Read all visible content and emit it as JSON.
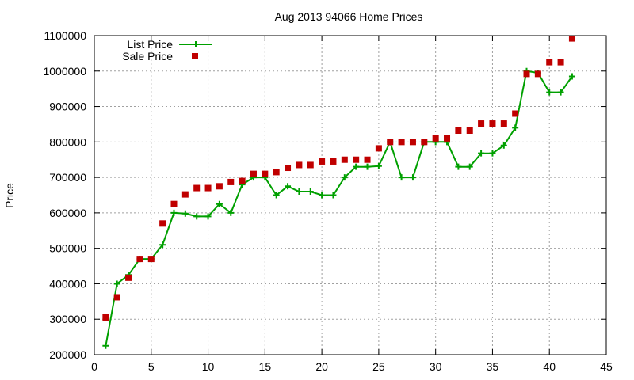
{
  "chart_data": {
    "type": "line",
    "title": "Aug 2013 94066 Home Prices",
    "xlabel": "",
    "ylabel": "Price",
    "xlim": [
      0,
      45
    ],
    "ylim": [
      200000,
      1100000
    ],
    "x_ticks": [
      0,
      5,
      10,
      15,
      20,
      25,
      30,
      35,
      40,
      45
    ],
    "y_ticks": [
      200000,
      300000,
      400000,
      500000,
      600000,
      700000,
      800000,
      900000,
      1000000,
      1100000
    ],
    "grid": true,
    "legend_position": "top-left",
    "series": [
      {
        "name": "List Price",
        "type": "line",
        "marker": "plus",
        "color": "#00a000",
        "x": [
          1,
          2,
          3,
          4,
          5,
          6,
          7,
          8,
          9,
          10,
          11,
          12,
          13,
          14,
          15,
          16,
          17,
          18,
          19,
          20,
          21,
          22,
          23,
          24,
          25,
          26,
          27,
          28,
          29,
          30,
          31,
          32,
          33,
          34,
          35,
          36,
          37,
          38,
          39,
          40,
          41,
          42
        ],
        "values": [
          225000,
          400000,
          425000,
          470000,
          470000,
          510000,
          600000,
          598000,
          590000,
          590000,
          625000,
          600000,
          680000,
          700000,
          700000,
          650000,
          675000,
          660000,
          660000,
          650000,
          650000,
          700000,
          730000,
          730000,
          732000,
          800000,
          700000,
          700000,
          800000,
          800000,
          800000,
          730000,
          730000,
          768000,
          768000,
          790000,
          840000,
          1000000,
          995000,
          940000,
          940000,
          985000
        ]
      },
      {
        "name": "Sale Price",
        "type": "scatter",
        "marker": "square",
        "color": "#c00000",
        "x": [
          1,
          2,
          3,
          4,
          5,
          6,
          7,
          8,
          9,
          10,
          11,
          12,
          13,
          14,
          15,
          16,
          17,
          18,
          19,
          20,
          21,
          22,
          23,
          24,
          25,
          26,
          27,
          28,
          29,
          30,
          31,
          32,
          33,
          34,
          35,
          36,
          37,
          38,
          39,
          40,
          41,
          42
        ],
        "values": [
          305000,
          362000,
          417000,
          470000,
          470000,
          570000,
          625000,
          652000,
          670000,
          670000,
          675000,
          687000,
          690000,
          710000,
          710000,
          715000,
          727000,
          735000,
          735000,
          745000,
          745000,
          750000,
          750000,
          750000,
          782000,
          800000,
          800000,
          800000,
          800000,
          810000,
          810000,
          832000,
          832000,
          852000,
          852000,
          852000,
          880000,
          992000,
          992000,
          1025000,
          1025000,
          1092000
        ]
      }
    ]
  }
}
